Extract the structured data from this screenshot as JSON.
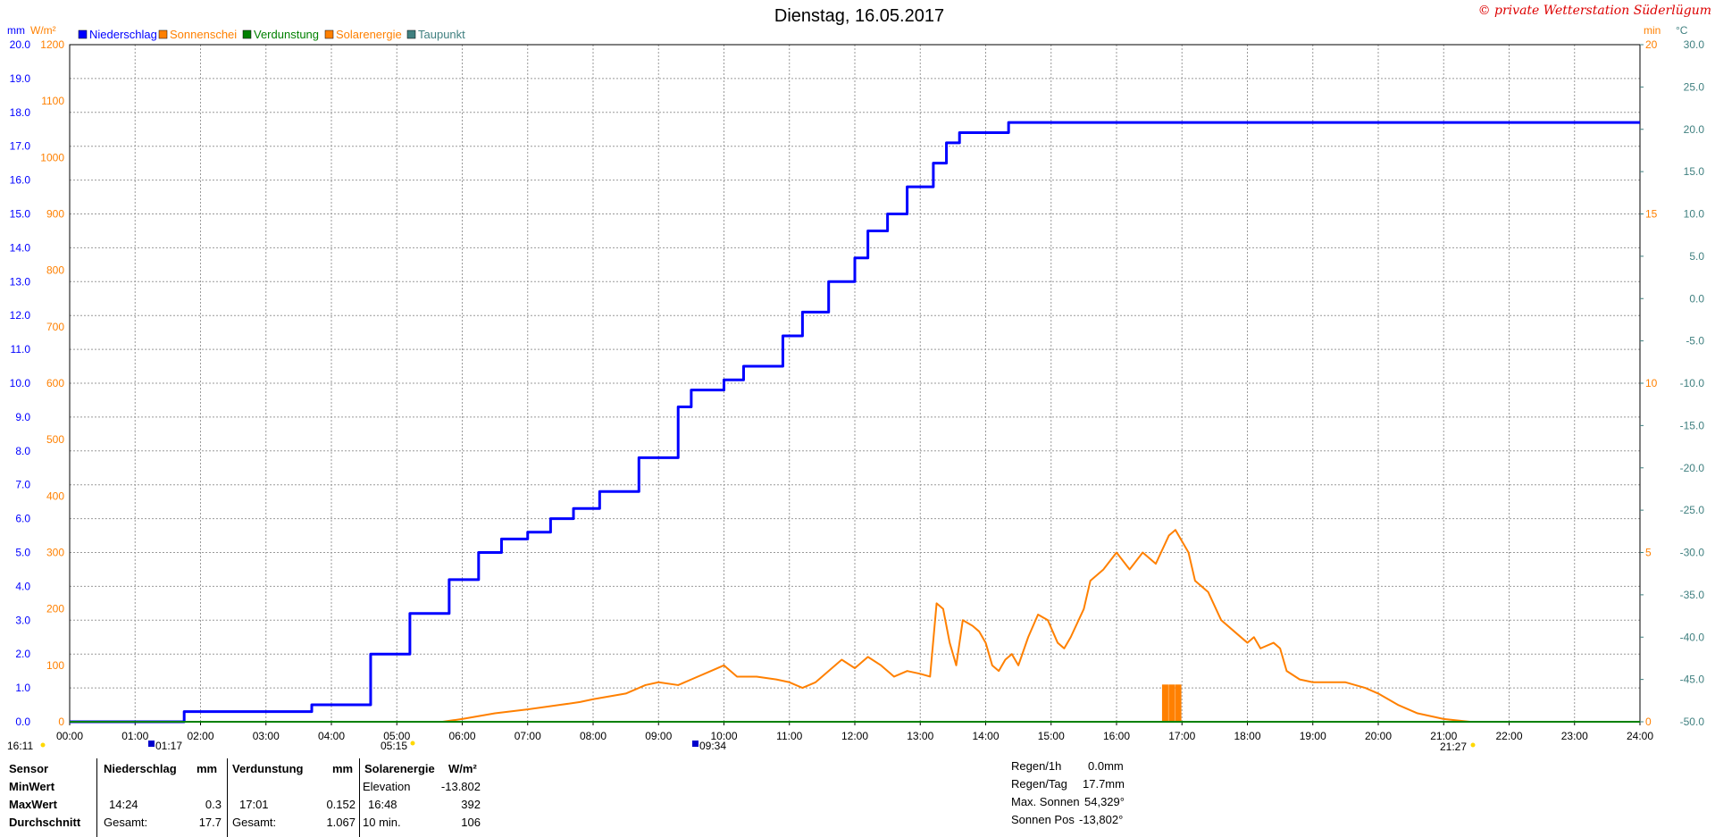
{
  "title": "Dienstag, 16.05.2017",
  "copyright": "© private Wetterstation Süderlügum",
  "axis_units": {
    "mm": "mm",
    "wm2": "W/m²",
    "min": "min",
    "celsius": "°C"
  },
  "legend": [
    {
      "label": "Niederschlag",
      "color": "#0000ff"
    },
    {
      "label": "Sonnenschei",
      "color": "#ff8000"
    },
    {
      "label": "Verdunstung",
      "color": "#008000"
    },
    {
      "label": "Solarenergie",
      "color": "#ff8000"
    },
    {
      "label": "Taupunkt",
      "color": "#408080"
    }
  ],
  "markers": {
    "left_time": "16:11",
    "min_time_1": "01:17",
    "sunrise": "05:15",
    "min_time_2": "09:34",
    "sunset": "21:27"
  },
  "chart_data": {
    "type": "line",
    "title": "Dienstag, 16.05.2017",
    "x_axis": {
      "ticks": [
        "00:00",
        "01:00",
        "02:00",
        "03:00",
        "04:00",
        "05:00",
        "06:00",
        "07:00",
        "08:00",
        "09:00",
        "10:00",
        "11:00",
        "12:00",
        "13:00",
        "14:00",
        "15:00",
        "16:00",
        "17:00",
        "18:00",
        "19:00",
        "20:00",
        "21:00",
        "22:00",
        "23:00",
        "24:00"
      ],
      "range_hours": [
        0,
        24
      ]
    },
    "y_axes": {
      "mm": {
        "range": [
          0,
          20
        ],
        "ticks": [
          "0.0",
          "1.0",
          "2.0",
          "3.0",
          "4.0",
          "5.0",
          "6.0",
          "7.0",
          "8.0",
          "9.0",
          "10.0",
          "11.0",
          "12.0",
          "13.0",
          "14.0",
          "15.0",
          "16.0",
          "17.0",
          "18.0",
          "19.0",
          "20.0"
        ]
      },
      "wm2": {
        "range": [
          0,
          1200
        ],
        "ticks": [
          "0",
          "100",
          "200",
          "300",
          "400",
          "500",
          "600",
          "700",
          "800",
          "900",
          "1000",
          "1100",
          "1200"
        ]
      },
      "min": {
        "range": [
          0,
          20
        ],
        "ticks": [
          "0",
          "5",
          "10",
          "15",
          "20"
        ]
      },
      "celsius": {
        "range": [
          -50,
          30
        ],
        "ticks": [
          "-50.0",
          "-45.0",
          "-40.0",
          "-35.0",
          "-30.0",
          "-25.0",
          "-20.0",
          "-15.0",
          "-10.0",
          "-5.0",
          "0.0",
          "5.0",
          "10.0",
          "15.0",
          "20.0",
          "25.0",
          "30.0"
        ]
      }
    },
    "grid": true,
    "series": [
      {
        "name": "Niederschlag",
        "axis": "mm",
        "color": "#0000ff",
        "step": true,
        "points": [
          [
            0,
            0
          ],
          [
            1.75,
            0
          ],
          [
            1.75,
            0.3
          ],
          [
            3.7,
            0.3
          ],
          [
            3.7,
            0.5
          ],
          [
            4.0,
            0.5
          ],
          [
            4.6,
            2.0
          ],
          [
            5.2,
            3.2
          ],
          [
            5.8,
            4.2
          ],
          [
            6.25,
            5.0
          ],
          [
            6.6,
            5.4
          ],
          [
            7.0,
            5.6
          ],
          [
            7.35,
            6.0
          ],
          [
            7.7,
            6.3
          ],
          [
            8.1,
            6.8
          ],
          [
            8.7,
            7.8
          ],
          [
            9.3,
            9.3
          ],
          [
            9.5,
            9.8
          ],
          [
            10.0,
            10.1
          ],
          [
            10.3,
            10.5
          ],
          [
            10.9,
            11.4
          ],
          [
            11.2,
            12.1
          ],
          [
            11.6,
            13.0
          ],
          [
            12.0,
            13.7
          ],
          [
            12.2,
            14.5
          ],
          [
            12.5,
            15.0
          ],
          [
            12.8,
            15.8
          ],
          [
            13.2,
            16.5
          ],
          [
            13.4,
            17.1
          ],
          [
            13.6,
            17.4
          ],
          [
            14.35,
            17.4
          ],
          [
            14.35,
            17.7
          ],
          [
            24,
            17.7
          ]
        ]
      },
      {
        "name": "Solarenergie",
        "axis": "wm2",
        "color": "#ff8000",
        "points": [
          [
            5.7,
            0
          ],
          [
            6.0,
            5
          ],
          [
            6.5,
            15
          ],
          [
            7.0,
            22
          ],
          [
            7.5,
            30
          ],
          [
            7.8,
            35
          ],
          [
            8.0,
            40
          ],
          [
            8.5,
            50
          ],
          [
            8.8,
            65
          ],
          [
            9.0,
            70
          ],
          [
            9.3,
            65
          ],
          [
            9.5,
            75
          ],
          [
            9.8,
            90
          ],
          [
            10.0,
            100
          ],
          [
            10.2,
            80
          ],
          [
            10.5,
            80
          ],
          [
            10.8,
            75
          ],
          [
            11.0,
            70
          ],
          [
            11.2,
            60
          ],
          [
            11.4,
            70
          ],
          [
            11.6,
            90
          ],
          [
            11.8,
            110
          ],
          [
            12.0,
            95
          ],
          [
            12.2,
            115
          ],
          [
            12.4,
            100
          ],
          [
            12.6,
            80
          ],
          [
            12.8,
            90
          ],
          [
            13.0,
            85
          ],
          [
            13.15,
            80
          ],
          [
            13.25,
            210
          ],
          [
            13.35,
            200
          ],
          [
            13.45,
            140
          ],
          [
            13.55,
            100
          ],
          [
            13.65,
            180
          ],
          [
            13.8,
            170
          ],
          [
            13.9,
            160
          ],
          [
            14.0,
            140
          ],
          [
            14.1,
            100
          ],
          [
            14.2,
            90
          ],
          [
            14.3,
            110
          ],
          [
            14.4,
            120
          ],
          [
            14.5,
            100
          ],
          [
            14.65,
            150
          ],
          [
            14.8,
            190
          ],
          [
            14.95,
            180
          ],
          [
            15.1,
            140
          ],
          [
            15.2,
            130
          ],
          [
            15.3,
            150
          ],
          [
            15.5,
            200
          ],
          [
            15.6,
            250
          ],
          [
            15.8,
            270
          ],
          [
            16.0,
            300
          ],
          [
            16.2,
            270
          ],
          [
            16.4,
            300
          ],
          [
            16.6,
            280
          ],
          [
            16.8,
            330
          ],
          [
            16.9,
            340
          ],
          [
            17.0,
            320
          ],
          [
            17.1,
            300
          ],
          [
            17.2,
            250
          ],
          [
            17.4,
            230
          ],
          [
            17.6,
            180
          ],
          [
            17.8,
            160
          ],
          [
            18.0,
            140
          ],
          [
            18.1,
            150
          ],
          [
            18.2,
            130
          ],
          [
            18.4,
            140
          ],
          [
            18.5,
            130
          ],
          [
            18.6,
            90
          ],
          [
            18.8,
            75
          ],
          [
            19.0,
            70
          ],
          [
            19.5,
            70
          ],
          [
            19.8,
            60
          ],
          [
            20.0,
            50
          ],
          [
            20.3,
            30
          ],
          [
            20.6,
            15
          ],
          [
            21.0,
            5
          ],
          [
            21.4,
            0
          ]
        ]
      },
      {
        "name": "Sonnenschei",
        "axis": "min",
        "color": "#ff8000",
        "type": "bar",
        "bars": [
          [
            16.75,
            1.1
          ],
          [
            16.85,
            1.1
          ],
          [
            16.95,
            1.1
          ]
        ]
      },
      {
        "name": "Verdunstung",
        "axis": "mm",
        "color": "#008000",
        "points": [
          [
            0,
            0
          ],
          [
            24,
            0
          ]
        ]
      }
    ]
  },
  "summary_table": {
    "headers": {
      "sensor": "Sensor",
      "niederschlag": "Niederschlag",
      "mm1": "mm",
      "verdunstung": "Verdunstung",
      "mm2": "mm",
      "solar": "Solarenergie",
      "wm2": "W/m²"
    },
    "rows": [
      {
        "label": "MinWert",
        "n_time": "",
        "n_val": "",
        "v_time": "",
        "v_val": "",
        "s_label": "Elevation",
        "s_val": "-13.802"
      },
      {
        "label": "MaxWert",
        "n_time": "14:24",
        "n_val": "0.3",
        "v_time": "17:01",
        "v_val": "0.152",
        "s_label": "16:48",
        "s_val": "392"
      },
      {
        "label": "Durchschnitt",
        "n_time": "Gesamt:",
        "n_val": "17.7",
        "v_time": "Gesamt:",
        "v_val": "1.067",
        "s_label": "10 min.",
        "s_val": "106"
      }
    ]
  },
  "info": [
    {
      "label": "Regen/1h",
      "value": "0.0mm"
    },
    {
      "label": "Regen/Tag",
      "value": "17.7mm"
    },
    {
      "label": "Max. Sonnen",
      "value": "54,329°"
    },
    {
      "label": "Sonnen Pos",
      "value": "-13,802°"
    }
  ]
}
